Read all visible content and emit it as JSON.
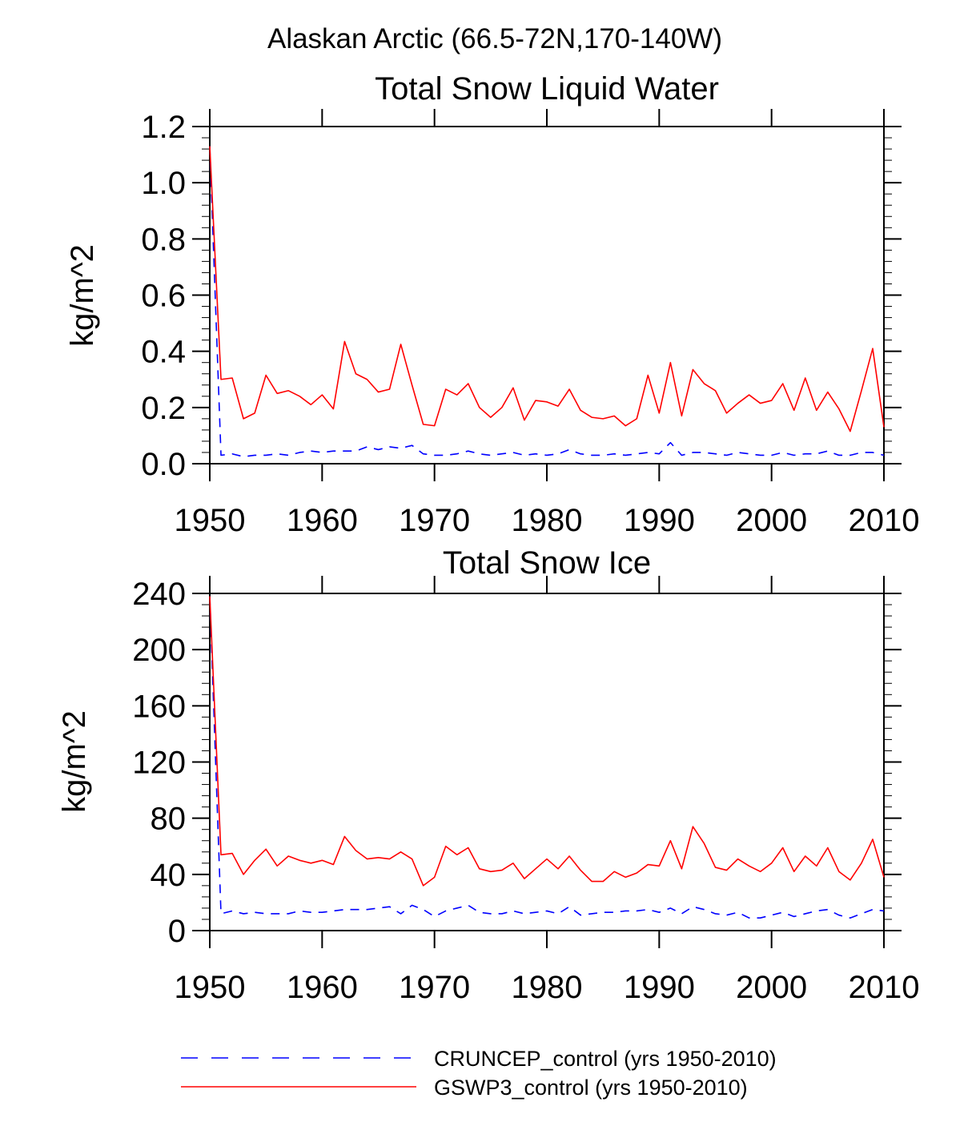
{
  "figure_title": "Alaskan Arctic (66.5-72N,170-140W)",
  "legend": [
    {
      "label": "CRUNCEP_control (yrs 1950-2010)",
      "color": "#0000ff",
      "style": "dashed"
    },
    {
      "label": "GSWP3_control (yrs 1950-2010)",
      "color": "#ff0000",
      "style": "solid"
    }
  ],
  "chart_data": [
    {
      "type": "line",
      "title": "Total Snow Liquid Water",
      "xlabel": "",
      "ylabel": "kg/m^2",
      "xlim": [
        1950,
        2010
      ],
      "ylim": [
        0,
        1.2
      ],
      "xticks": [
        1950,
        1960,
        1970,
        1980,
        1990,
        2000,
        2010
      ],
      "xtick_labels": [
        "1950",
        "1960",
        "1970",
        "1980",
        "1990",
        "2000",
        "2010"
      ],
      "yticks": [
        0,
        0.2,
        0.4,
        0.6,
        0.8,
        1.0,
        1.2
      ],
      "ytick_labels": [
        "0.0",
        "0.2",
        "0.4",
        "0.6",
        "0.8",
        "1.0",
        "1.2"
      ],
      "x": [
        1950,
        1951,
        1952,
        1953,
        1954,
        1955,
        1956,
        1957,
        1958,
        1959,
        1960,
        1961,
        1962,
        1963,
        1964,
        1965,
        1966,
        1967,
        1968,
        1969,
        1970,
        1971,
        1972,
        1973,
        1974,
        1975,
        1976,
        1977,
        1978,
        1979,
        1980,
        1981,
        1982,
        1983,
        1984,
        1985,
        1986,
        1987,
        1988,
        1989,
        1990,
        1991,
        1992,
        1993,
        1994,
        1995,
        1996,
        1997,
        1998,
        1999,
        2000,
        2001,
        2002,
        2003,
        2004,
        2005,
        2006,
        2007,
        2008,
        2009,
        2010
      ],
      "series": [
        {
          "name": "CRUNCEP_control (yrs 1950-2010)",
          "color": "#0000ff",
          "style": "dashed",
          "values": [
            1.13,
            0.03,
            0.035,
            0.025,
            0.03,
            0.03,
            0.035,
            0.03,
            0.04,
            0.045,
            0.04,
            0.045,
            0.045,
            0.045,
            0.06,
            0.05,
            0.06,
            0.055,
            0.065,
            0.035,
            0.03,
            0.03,
            0.035,
            0.045,
            0.035,
            0.03,
            0.035,
            0.04,
            0.03,
            0.035,
            0.03,
            0.035,
            0.05,
            0.035,
            0.03,
            0.03,
            0.035,
            0.03,
            0.035,
            0.04,
            0.035,
            0.075,
            0.03,
            0.04,
            0.04,
            0.035,
            0.03,
            0.04,
            0.035,
            0.03,
            0.03,
            0.04,
            0.03,
            0.035,
            0.035,
            0.045,
            0.03,
            0.03,
            0.04,
            0.04,
            0.03
          ]
        },
        {
          "name": "GSWP3_control (yrs 1950-2010)",
          "color": "#ff0000",
          "style": "solid",
          "values": [
            1.13,
            0.3,
            0.305,
            0.16,
            0.18,
            0.315,
            0.25,
            0.26,
            0.24,
            0.21,
            0.245,
            0.195,
            0.435,
            0.32,
            0.3,
            0.255,
            0.265,
            0.425,
            0.28,
            0.14,
            0.135,
            0.265,
            0.245,
            0.285,
            0.2,
            0.165,
            0.2,
            0.27,
            0.155,
            0.225,
            0.22,
            0.205,
            0.265,
            0.19,
            0.165,
            0.16,
            0.17,
            0.135,
            0.16,
            0.315,
            0.18,
            0.36,
            0.17,
            0.335,
            0.285,
            0.26,
            0.18,
            0.215,
            0.245,
            0.215,
            0.225,
            0.285,
            0.19,
            0.305,
            0.19,
            0.255,
            0.195,
            0.115,
            0.26,
            0.41,
            0.13
          ]
        }
      ]
    },
    {
      "type": "line",
      "title": "Total Snow Ice",
      "xlabel": "",
      "ylabel": "kg/m^2",
      "xlim": [
        1950,
        2010
      ],
      "ylim": [
        0,
        240
      ],
      "xticks": [
        1950,
        1960,
        1970,
        1980,
        1990,
        2000,
        2010
      ],
      "xtick_labels": [
        "1950",
        "1960",
        "1970",
        "1980",
        "1990",
        "2000",
        "2010"
      ],
      "yticks": [
        0,
        40,
        80,
        120,
        160,
        200,
        240
      ],
      "ytick_labels": [
        "0",
        "40",
        "80",
        "120",
        "160",
        "200",
        "240"
      ],
      "x": [
        1950,
        1951,
        1952,
        1953,
        1954,
        1955,
        1956,
        1957,
        1958,
        1959,
        1960,
        1961,
        1962,
        1963,
        1964,
        1965,
        1966,
        1967,
        1968,
        1969,
        1970,
        1971,
        1972,
        1973,
        1974,
        1975,
        1976,
        1977,
        1978,
        1979,
        1980,
        1981,
        1982,
        1983,
        1984,
        1985,
        1986,
        1987,
        1988,
        1989,
        1990,
        1991,
        1992,
        1993,
        1994,
        1995,
        1996,
        1997,
        1998,
        1999,
        2000,
        2001,
        2002,
        2003,
        2004,
        2005,
        2006,
        2007,
        2008,
        2009,
        2010
      ],
      "series": [
        {
          "name": "CRUNCEP_control (yrs 1950-2010)",
          "color": "#0000ff",
          "style": "dashed",
          "values": [
            238,
            12,
            14,
            12,
            13,
            12,
            12,
            12,
            14,
            13,
            13,
            14,
            15,
            15,
            15,
            16,
            17,
            12,
            18,
            15,
            10,
            14,
            16,
            18,
            13,
            12,
            12,
            14,
            12,
            13,
            14,
            12,
            17,
            11,
            12,
            13,
            13,
            14,
            14,
            15,
            13,
            16,
            12,
            17,
            15,
            12,
            11,
            13,
            9,
            9,
            11,
            13,
            10,
            12,
            14,
            15,
            11,
            9,
            12,
            15,
            14
          ]
        },
        {
          "name": "GSWP3_control (yrs 1950-2010)",
          "color": "#ff0000",
          "style": "solid",
          "values": [
            238,
            54,
            55,
            40,
            50,
            58,
            46,
            53,
            50,
            48,
            50,
            47,
            67,
            57,
            51,
            52,
            51,
            56,
            51,
            32,
            38,
            60,
            54,
            59,
            44,
            42,
            43,
            48,
            37,
            44,
            51,
            44,
            53,
            43,
            35,
            35,
            42,
            38,
            41,
            47,
            46,
            64,
            44,
            74,
            62,
            45,
            43,
            51,
            46,
            42,
            48,
            59,
            42,
            53,
            46,
            59,
            42,
            36,
            48,
            65,
            38
          ]
        }
      ]
    }
  ]
}
